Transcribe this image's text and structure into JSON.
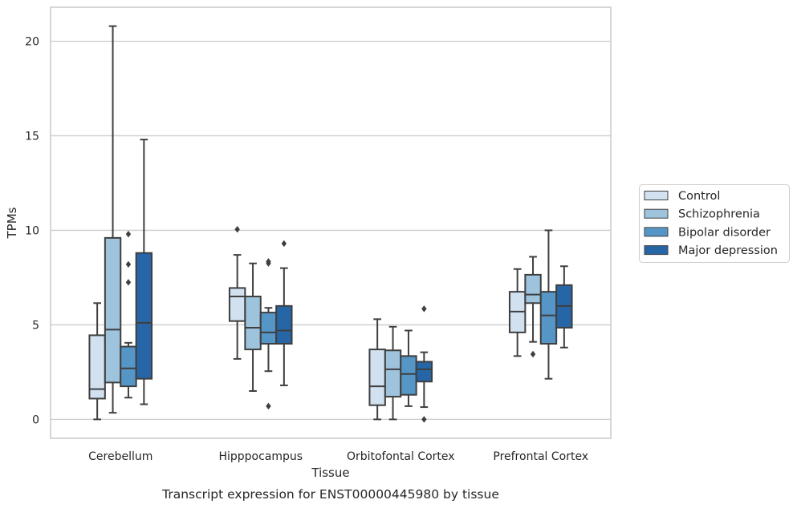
{
  "chart_data": {
    "type": "boxplot",
    "title": "Transcript expression for ENST00000445980 by tissue",
    "xlabel": "Tissue",
    "ylabel": "TPMs",
    "ylim": [
      -1,
      21.8
    ],
    "yticks": [
      0,
      5,
      10,
      15,
      20
    ],
    "grid": "horizontal",
    "legend_position": "right",
    "categories": [
      "Cerebellum",
      "Hipppocampus",
      "Orbitofontal Cortex",
      "Prefrontal Cortex"
    ],
    "series": [
      {
        "name": "Control",
        "color": "#d1e1f0",
        "boxes": [
          {
            "whislo": 0.0,
            "q1": 1.1,
            "med": 1.6,
            "q3": 4.45,
            "whishi": 6.15,
            "fliers": []
          },
          {
            "whislo": 3.2,
            "q1": 5.2,
            "med": 6.5,
            "q3": 6.95,
            "whishi": 8.7,
            "fliers": [
              10.05
            ]
          },
          {
            "whislo": 0.0,
            "q1": 0.75,
            "med": 1.75,
            "q3": 3.7,
            "whishi": 5.3,
            "fliers": []
          },
          {
            "whislo": 3.35,
            "q1": 4.6,
            "med": 5.7,
            "q3": 6.75,
            "whishi": 7.95,
            "fliers": []
          }
        ]
      },
      {
        "name": "Schizophrenia",
        "color": "#9dc3dd",
        "boxes": [
          {
            "whislo": 0.35,
            "q1": 1.95,
            "med": 4.75,
            "q3": 9.6,
            "whishi": 20.8,
            "fliers": []
          },
          {
            "whislo": 1.5,
            "q1": 3.7,
            "med": 4.85,
            "q3": 6.5,
            "whishi": 8.25,
            "fliers": []
          },
          {
            "whislo": 0.0,
            "q1": 1.2,
            "med": 2.65,
            "q3": 3.65,
            "whishi": 4.9,
            "fliers": []
          },
          {
            "whislo": 4.1,
            "q1": 6.15,
            "med": 6.6,
            "q3": 7.65,
            "whishi": 8.6,
            "fliers": [
              3.45
            ]
          }
        ]
      },
      {
        "name": "Bipolar disorder",
        "color": "#5596c6",
        "boxes": [
          {
            "whislo": 1.15,
            "q1": 1.75,
            "med": 2.7,
            "q3": 3.85,
            "whishi": 4.05,
            "fliers": [
              7.25,
              8.2,
              9.8
            ]
          },
          {
            "whislo": 2.55,
            "q1": 4.0,
            "med": 4.6,
            "q3": 5.65,
            "whishi": 5.9,
            "fliers": [
              0.7,
              8.25,
              8.35
            ]
          },
          {
            "whislo": 0.7,
            "q1": 1.3,
            "med": 2.4,
            "q3": 3.35,
            "whishi": 4.7,
            "fliers": []
          },
          {
            "whislo": 2.15,
            "q1": 4.0,
            "med": 5.5,
            "q3": 6.75,
            "whishi": 10.0,
            "fliers": []
          }
        ]
      },
      {
        "name": "Major depression",
        "color": "#2666a6",
        "boxes": [
          {
            "whislo": 0.8,
            "q1": 2.15,
            "med": 5.1,
            "q3": 8.8,
            "whishi": 14.8,
            "fliers": []
          },
          {
            "whislo": 1.8,
            "q1": 4.0,
            "med": 4.7,
            "q3": 6.0,
            "whishi": 8.0,
            "fliers": [
              9.3
            ]
          },
          {
            "whislo": 0.65,
            "q1": 2.0,
            "med": 2.65,
            "q3": 3.05,
            "whishi": 3.55,
            "fliers": [
              0.0,
              5.85
            ]
          },
          {
            "whislo": 3.8,
            "q1": 4.85,
            "med": 6.0,
            "q3": 7.1,
            "whishi": 8.1,
            "fliers": []
          }
        ]
      }
    ]
  }
}
